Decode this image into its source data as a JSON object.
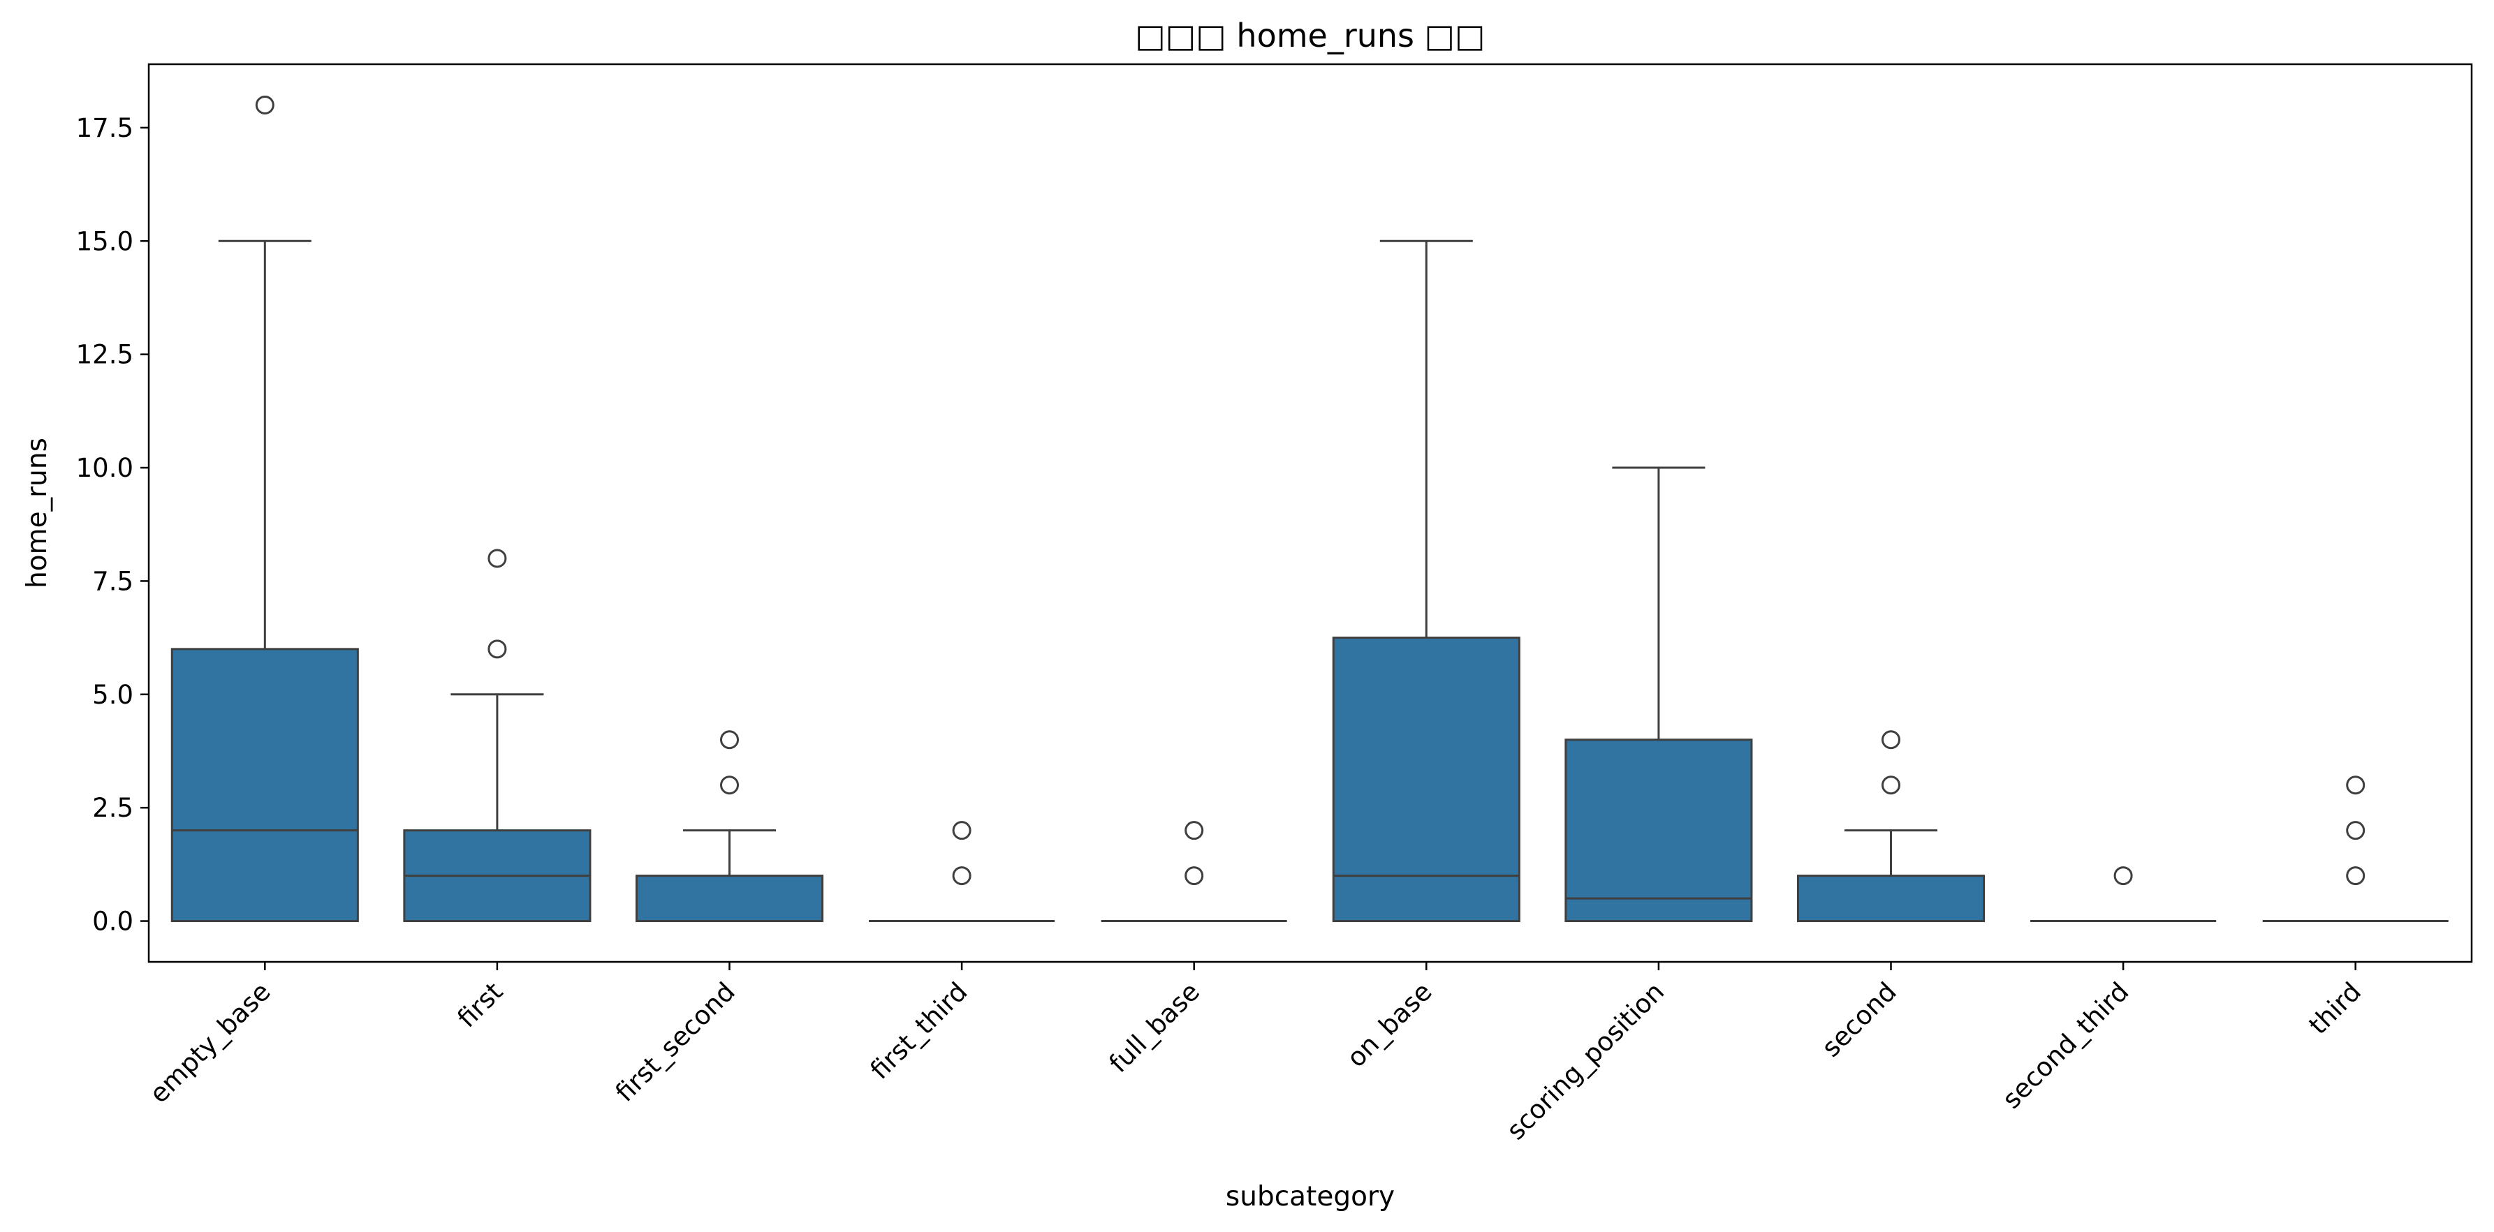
{
  "chart_data": {
    "type": "box",
    "title": "□□□ home_runs □□",
    "xlabel": "subcategory",
    "ylabel": "home_runs",
    "ylim": [
      -0.9,
      18.9
    ],
    "yticks": [
      0.0,
      2.5,
      5.0,
      7.5,
      10.0,
      12.5,
      15.0,
      17.5
    ],
    "ytick_labels": [
      "0.0",
      "2.5",
      "5.0",
      "7.5",
      "10.0",
      "12.5",
      "15.0",
      "17.5"
    ],
    "grid": false,
    "box_color": "#3274a1",
    "edge_color": "#3f3f3f",
    "categories": [
      "empty_base",
      "first",
      "first_second",
      "first_third",
      "full_base",
      "on_base",
      "scoring_position",
      "second",
      "second_third",
      "third"
    ],
    "boxes": [
      {
        "q1": 0,
        "median": 2,
        "q3": 6,
        "whisker_low": 0,
        "whisker_high": 15,
        "outliers": [
          18
        ]
      },
      {
        "q1": 0,
        "median": 1,
        "q3": 2,
        "whisker_low": 0,
        "whisker_high": 5,
        "outliers": [
          6,
          8
        ]
      },
      {
        "q1": 0,
        "median": 0,
        "q3": 1,
        "whisker_low": 0,
        "whisker_high": 2,
        "outliers": [
          3,
          4
        ]
      },
      {
        "q1": 0,
        "median": 0,
        "q3": 0,
        "whisker_low": 0,
        "whisker_high": 0,
        "outliers": [
          1,
          2
        ]
      },
      {
        "q1": 0,
        "median": 0,
        "q3": 0,
        "whisker_low": 0,
        "whisker_high": 0,
        "outliers": [
          1,
          2
        ]
      },
      {
        "q1": 0,
        "median": 1,
        "q3": 6.25,
        "whisker_low": 0,
        "whisker_high": 15,
        "outliers": []
      },
      {
        "q1": 0,
        "median": 0.5,
        "q3": 4,
        "whisker_low": 0,
        "whisker_high": 10,
        "outliers": []
      },
      {
        "q1": 0,
        "median": 0,
        "q3": 1,
        "whisker_low": 0,
        "whisker_high": 2,
        "outliers": [
          3,
          4
        ]
      },
      {
        "q1": 0,
        "median": 0,
        "q3": 0,
        "whisker_low": 0,
        "whisker_high": 0,
        "outliers": [
          1
        ]
      },
      {
        "q1": 0,
        "median": 0,
        "q3": 0,
        "whisker_low": 0,
        "whisker_high": 0,
        "outliers": [
          1,
          2,
          3
        ]
      }
    ]
  }
}
